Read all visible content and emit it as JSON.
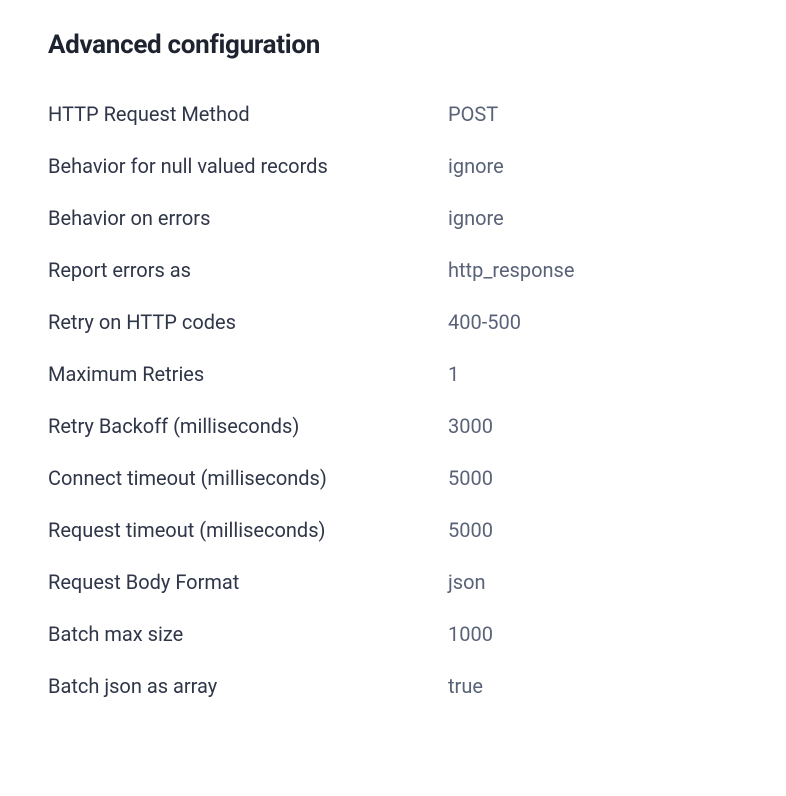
{
  "section": {
    "title": "Advanced configuration"
  },
  "config": {
    "rows": [
      {
        "label": "HTTP Request Method",
        "value": "POST"
      },
      {
        "label": "Behavior for null valued records",
        "value": "ignore"
      },
      {
        "label": "Behavior on errors",
        "value": "ignore"
      },
      {
        "label": "Report errors as",
        "value": "http_response"
      },
      {
        "label": "Retry on HTTP codes",
        "value": "400-500"
      },
      {
        "label": "Maximum Retries",
        "value": "1"
      },
      {
        "label": "Retry Backoff (milliseconds)",
        "value": "3000"
      },
      {
        "label": "Connect timeout (milliseconds)",
        "value": "5000"
      },
      {
        "label": "Request timeout (milliseconds)",
        "value": "5000"
      },
      {
        "label": "Request Body Format",
        "value": "json"
      },
      {
        "label": "Batch max size",
        "value": "1000"
      },
      {
        "label": "Batch json as array",
        "value": "true"
      }
    ]
  },
  "colors": {
    "title": "#1e2330",
    "label": "#2f3648",
    "value": "#5a6278",
    "background": "#ffffff"
  }
}
